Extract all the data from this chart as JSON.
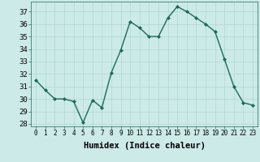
{
  "x": [
    0,
    1,
    2,
    3,
    4,
    5,
    6,
    7,
    8,
    9,
    10,
    11,
    12,
    13,
    14,
    15,
    16,
    17,
    18,
    19,
    20,
    21,
    22,
    23
  ],
  "y": [
    31.5,
    30.7,
    30.0,
    30.0,
    29.8,
    28.1,
    29.9,
    29.3,
    32.1,
    33.9,
    36.2,
    35.7,
    35.0,
    35.0,
    36.5,
    37.4,
    37.0,
    36.5,
    36.0,
    35.4,
    33.2,
    31.0,
    29.7,
    29.5
  ],
  "line_color": "#1a6b5a",
  "marker": "D",
  "marker_size": 2.0,
  "bg_color": "#cceae7",
  "grid_color": "#b0d8d4",
  "xlabel": "Humidex (Indice chaleur)",
  "xlim": [
    -0.5,
    23.5
  ],
  "ylim": [
    27.8,
    37.8
  ],
  "yticks": [
    28,
    29,
    30,
    31,
    32,
    33,
    34,
    35,
    36,
    37
  ],
  "xticks": [
    0,
    1,
    2,
    3,
    4,
    5,
    6,
    7,
    8,
    9,
    10,
    11,
    12,
    13,
    14,
    15,
    16,
    17,
    18,
    19,
    20,
    21,
    22,
    23
  ],
  "xtick_fontsize": 5.5,
  "ytick_fontsize": 6.5,
  "xlabel_fontsize": 7.5,
  "linewidth": 1.0
}
